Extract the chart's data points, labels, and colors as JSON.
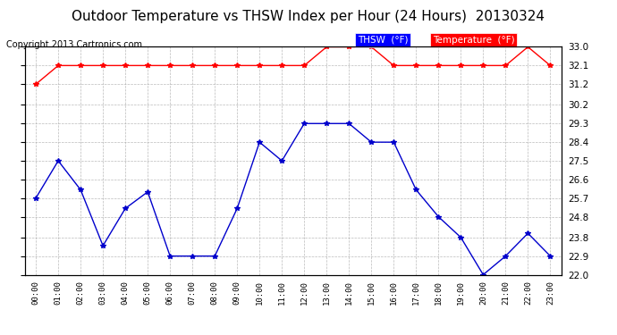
{
  "title": "Outdoor Temperature vs THSW Index per Hour (24 Hours)  20130324",
  "copyright": "Copyright 2013 Cartronics.com",
  "hours": [
    "00:00",
    "01:00",
    "02:00",
    "03:00",
    "04:00",
    "05:00",
    "06:00",
    "07:00",
    "08:00",
    "09:00",
    "10:00",
    "11:00",
    "12:00",
    "13:00",
    "14:00",
    "15:00",
    "16:00",
    "17:00",
    "18:00",
    "19:00",
    "20:00",
    "21:00",
    "22:00",
    "23:00"
  ],
  "temperature": [
    31.2,
    32.1,
    32.1,
    32.1,
    32.1,
    32.1,
    32.1,
    32.1,
    32.1,
    32.1,
    32.1,
    32.1,
    32.1,
    33.0,
    33.0,
    33.0,
    32.1,
    32.1,
    32.1,
    32.1,
    32.1,
    32.1,
    33.0,
    32.1
  ],
  "thsw": [
    25.7,
    27.5,
    26.1,
    23.4,
    25.2,
    26.0,
    22.9,
    22.9,
    22.9,
    25.2,
    28.4,
    27.5,
    29.3,
    29.3,
    29.3,
    28.4,
    28.4,
    26.1,
    24.8,
    23.8,
    22.0,
    22.9,
    24.0,
    22.9
  ],
  "temp_color": "#ff0000",
  "thsw_color": "#0000cc",
  "background_color": "#ffffff",
  "plot_bg_color": "#ffffff",
  "grid_color": "#aaaaaa",
  "ylim": [
    22.0,
    33.0
  ],
  "yticks": [
    22.0,
    22.9,
    23.8,
    24.8,
    25.7,
    26.6,
    27.5,
    28.4,
    29.3,
    30.2,
    31.2,
    32.1,
    33.0
  ],
  "legend_thsw_bg": "#0000ff",
  "legend_temp_bg": "#ff0000",
  "legend_thsw_text": "THSW  (°F)",
  "legend_temp_text": "Temperature  (°F)",
  "title_fontsize": 11,
  "copyright_fontsize": 7,
  "marker": "*",
  "marker_size": 4,
  "line_width": 1.0
}
